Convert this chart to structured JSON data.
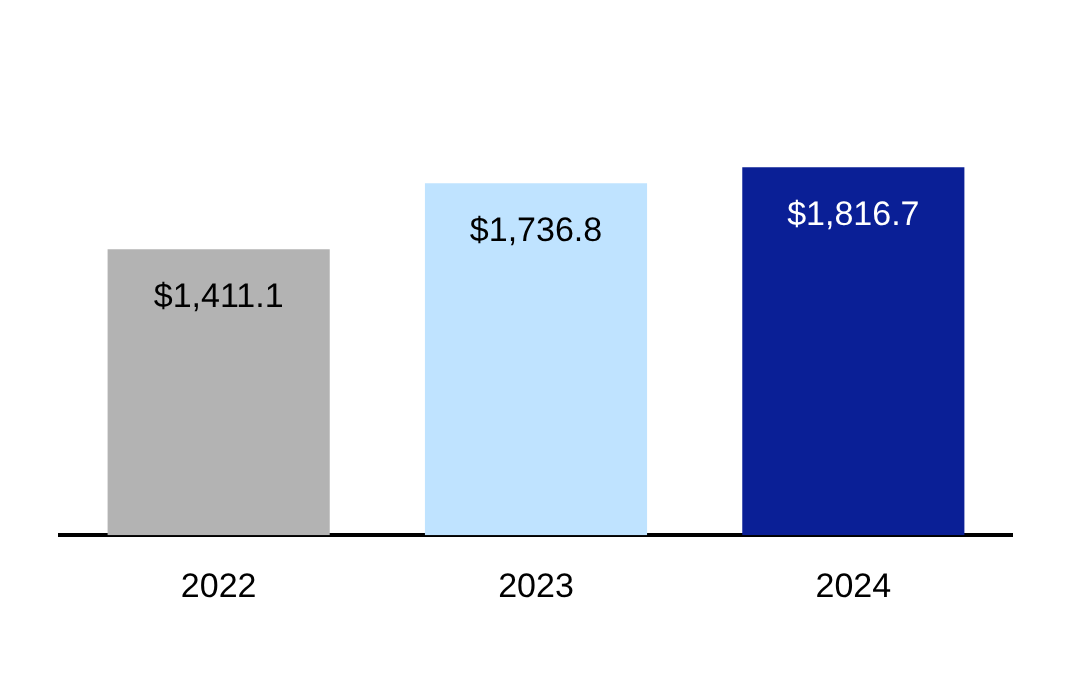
{
  "chart_data": {
    "type": "bar",
    "categories": [
      "2022",
      "2023",
      "2024"
    ],
    "values": [
      1411.1,
      1736.8,
      1816.7
    ],
    "colors": [
      "#b3b3b3",
      "#bfe3ff",
      "#0a1f96"
    ],
    "value_labels": [
      "$1,411.1",
      "$1,736.8",
      "$1,816.7"
    ],
    "grid": false,
    "legend": false
  }
}
